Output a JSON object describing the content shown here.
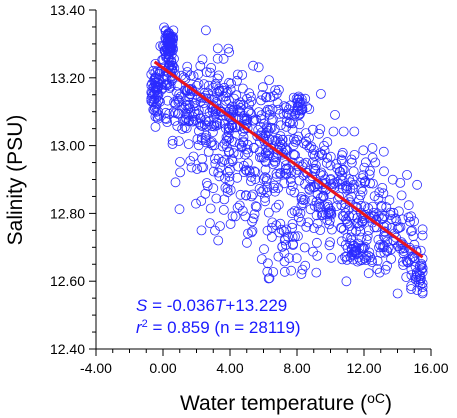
{
  "chart_data": {
    "type": "scatter",
    "xlabel": "Water temperature (",
    "xlabel_unit": "oC",
    "xlabel_close": ")",
    "ylabel": "Salinity (PSU)",
    "xlim": [
      -4.0,
      16.0
    ],
    "ylim": [
      12.4,
      13.4
    ],
    "x_ticks": [
      "-4.00",
      "0.00",
      "4.00",
      "8.00",
      "12.00",
      "16.00"
    ],
    "y_ticks": [
      "12.40",
      "12.60",
      "12.80",
      "13.00",
      "13.20",
      "13.40"
    ],
    "x_tick_values": [
      -4,
      0,
      4,
      8,
      12,
      16
    ],
    "y_tick_values": [
      12.4,
      12.6,
      12.8,
      13.0,
      13.2,
      13.4
    ],
    "grid": false,
    "marker_color": "#2b2bff",
    "fit_color": "#e8141e",
    "fit_line": {
      "slope": -0.036,
      "intercept": 13.229,
      "x_range": [
        -0.5,
        15.5
      ]
    },
    "annotations": {
      "equation_prefix": "S",
      "equation_mid": " = -0.036",
      "equation_var": "T",
      "equation_tail": "+13.229",
      "r2_prefix": "r",
      "r2_exp": "2",
      "r2_tail": " = 0.859 (n = 28119)"
    },
    "point_clusters": [
      {
        "x": -0.4,
        "y": 13.16,
        "sx": 0.15,
        "sy": 0.04,
        "n": 60
      },
      {
        "x": 0.3,
        "y": 13.24,
        "sx": 0.2,
        "sy": 0.05,
        "n": 70
      },
      {
        "x": 0.4,
        "y": 13.31,
        "sx": 0.15,
        "sy": 0.02,
        "n": 40
      },
      {
        "x": 1.5,
        "y": 13.12,
        "sx": 0.9,
        "sy": 0.05,
        "n": 90
      },
      {
        "x": 3.0,
        "y": 13.1,
        "sx": 1.0,
        "sy": 0.08,
        "n": 110
      },
      {
        "x": 5.0,
        "y": 13.04,
        "sx": 1.2,
        "sy": 0.08,
        "n": 130
      },
      {
        "x": 7.0,
        "y": 12.97,
        "sx": 1.2,
        "sy": 0.09,
        "n": 130
      },
      {
        "x": 8.2,
        "y": 13.12,
        "sx": 0.25,
        "sy": 0.02,
        "n": 30
      },
      {
        "x": 9.5,
        "y": 12.88,
        "sx": 1.2,
        "sy": 0.09,
        "n": 120
      },
      {
        "x": 11.5,
        "y": 12.8,
        "sx": 1.2,
        "sy": 0.09,
        "n": 110
      },
      {
        "x": 11.6,
        "y": 12.69,
        "sx": 0.4,
        "sy": 0.02,
        "n": 30
      },
      {
        "x": 13.5,
        "y": 12.74,
        "sx": 1.0,
        "sy": 0.07,
        "n": 90
      },
      {
        "x": 15.0,
        "y": 12.64,
        "sx": 0.4,
        "sy": 0.05,
        "n": 30
      },
      {
        "x": 15.3,
        "y": 12.6,
        "sx": 0.15,
        "sy": 0.02,
        "n": 10
      },
      {
        "x": 4.0,
        "y": 12.86,
        "sx": 1.5,
        "sy": 0.07,
        "n": 60
      },
      {
        "x": 7.5,
        "y": 12.7,
        "sx": 1.0,
        "sy": 0.06,
        "n": 40
      }
    ]
  }
}
